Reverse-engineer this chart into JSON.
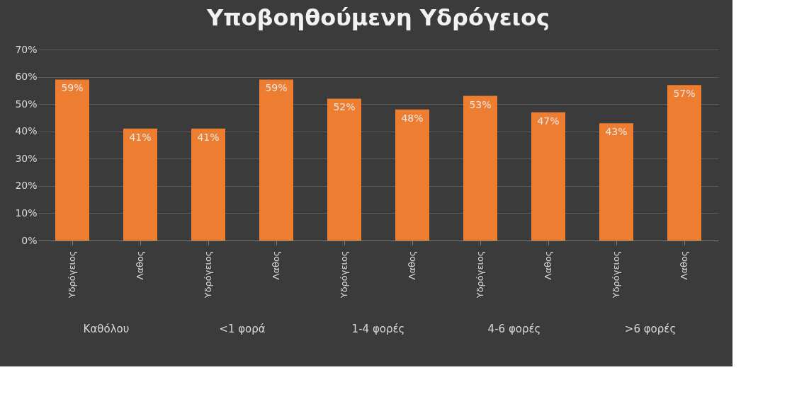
{
  "chart_data": {
    "type": "bar",
    "title": "Υποβοηθούμενη Υδρόγειος",
    "categories": [
      "Υδρόγειος",
      "Λαθος",
      "Υδρόγειος",
      "Λαθος",
      "Υδρόγειος",
      "Λαθος",
      "Υδρόγειος",
      "Λαθος",
      "Υδρόγειος",
      "Λαθος"
    ],
    "values": [
      59,
      41,
      41,
      59,
      52,
      48,
      53,
      47,
      43,
      57
    ],
    "color": "#ed7d31",
    "data_labels": true,
    "value_labels": [
      "59%",
      "41%",
      "41%",
      "59%",
      "52%",
      "48%",
      "53%",
      "47%",
      "43%",
      "57%"
    ],
    "ylim": [
      0,
      70
    ],
    "yticks": [
      {
        "value": 0,
        "label": "0%"
      },
      {
        "value": 10,
        "label": "10%"
      },
      {
        "value": 20,
        "label": "20%"
      },
      {
        "value": 30,
        "label": "30%"
      },
      {
        "value": 40,
        "label": "40%"
      },
      {
        "value": 50,
        "label": "50%"
      },
      {
        "value": 60,
        "label": "60%"
      },
      {
        "value": 70,
        "label": "70%"
      }
    ],
    "grid": "y",
    "annotations": [
      "Καθόλου",
      "<1 φορά",
      "1-4 φορές",
      "4-6 φορές",
      ">6 φορές"
    ]
  }
}
